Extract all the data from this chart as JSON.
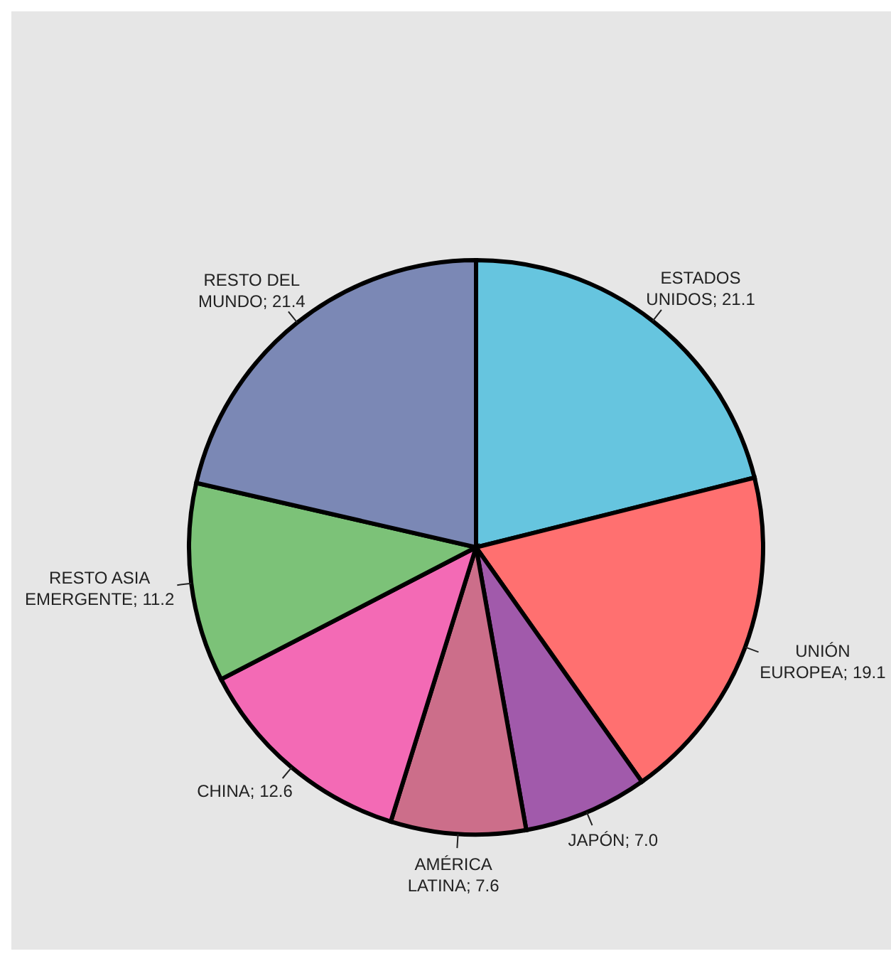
{
  "chart_data": {
    "type": "pie",
    "categories": [
      "ESTADOS UNIDOS",
      "UNIÓN EUROPEA",
      "JAPÓN",
      "AMÉRICA LATINA",
      "CHINA",
      "RESTO ASIA EMERGENTE",
      "RESTO DEL MUNDO"
    ],
    "values": [
      21.1,
      19.1,
      7.0,
      7.6,
      12.6,
      11.2,
      21.4
    ],
    "value_labels": [
      "21.1",
      "19.1",
      "7.0",
      "7.6",
      "12.6",
      "11.2",
      "21.4"
    ],
    "colors": [
      "#66c5df",
      "#ff7070",
      "#a15aab",
      "#cc6e8a",
      "#f36ab5",
      "#7cc278",
      "#7b88b5"
    ],
    "legend": false
  }
}
